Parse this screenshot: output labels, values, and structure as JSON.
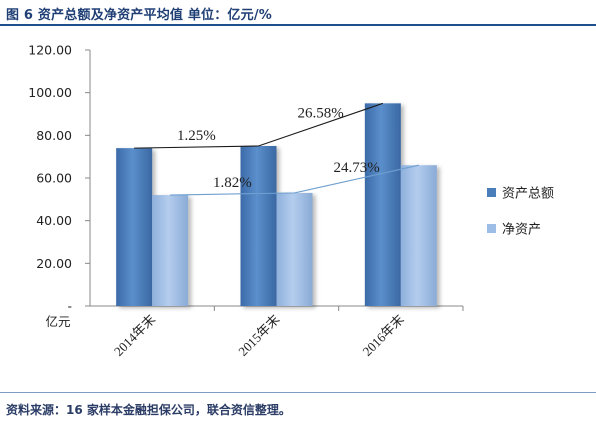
{
  "title": "图 6 资产总额及净资产平均值 单位：亿元/%",
  "source": "资料来源：16 家样本金融担保公司，联合资信整理。",
  "unit_label": "亿元",
  "colors": {
    "series1": "#4a7ebb",
    "series2": "#9dbde6",
    "trend1": "#1a1a1a",
    "trend2": "#6fa0d0",
    "title": "#1f3f75"
  },
  "chart_data": {
    "type": "bar",
    "categories": [
      "2014年末",
      "2015年末",
      "2016年末"
    ],
    "series": [
      {
        "name": "资产总额",
        "values": [
          74.0,
          75.0,
          95.0
        ]
      },
      {
        "name": "净资产",
        "values": [
          52.0,
          53.0,
          66.0
        ]
      }
    ],
    "y_ticks": [
      "-",
      "20.00",
      "40.00",
      "60.00",
      "80.00",
      "100.00",
      "120.00"
    ],
    "ylim": [
      0,
      120
    ],
    "annotations": [
      {
        "text": "1.25%",
        "series": 0,
        "category": 0
      },
      {
        "text": "26.58%",
        "series": 0,
        "category": 1
      },
      {
        "text": "1.82%",
        "series": 1,
        "category": 0
      },
      {
        "text": "24.73%",
        "series": 1,
        "category": 1
      }
    ],
    "legend_position": "right",
    "grid": false
  }
}
